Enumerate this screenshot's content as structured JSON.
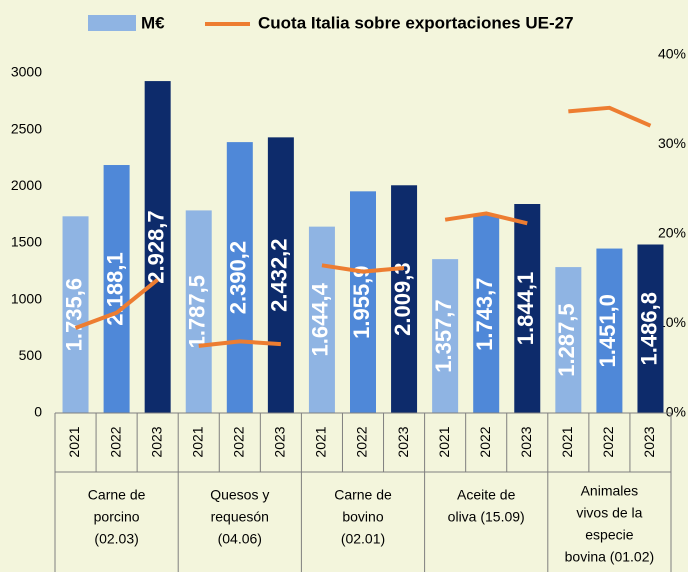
{
  "chart_data": {
    "type": "bar_line",
    "categories": [
      [
        "Carne de",
        "porcino",
        "(02.03)"
      ],
      [
        "Quesos y",
        "requesón",
        "(04.06)"
      ],
      [
        "Carne de",
        "bovino",
        "(02.01)"
      ],
      [
        "Aceite de",
        "oliva  (15.09)"
      ],
      [
        "Animales",
        "vivos de la",
        "especie",
        "bovina (01.02)"
      ]
    ],
    "years": [
      "2021",
      "2022",
      "2023"
    ],
    "series": [
      {
        "name": "M€",
        "color": "#8fb4e3",
        "colors": [
          "#8fb4e3",
          "#4f88d8",
          "#0d2b6b"
        ],
        "values": [
          [
            1735.6,
            2188.1,
            2928.7
          ],
          [
            1787.5,
            2390.2,
            2432.2
          ],
          [
            1644.4,
            1955.9,
            2009.3
          ],
          [
            1357.7,
            1743.7,
            1844.1
          ],
          [
            1287.5,
            1451.0,
            1486.8
          ]
        ],
        "value_labels": [
          [
            "1.735,6",
            "2.188,1",
            "2.928,7"
          ],
          [
            "1.787,5",
            "2.390,2",
            "2.432,2"
          ],
          [
            "1.644,4",
            "1.955,9",
            "2.009,3"
          ],
          [
            "1.357,7",
            "1.743,7",
            "1.844,1"
          ],
          [
            "1.287,5",
            "1.451,0",
            "1.486,8"
          ]
        ]
      },
      {
        "name": "Cuota Italia sobre exportaciones UE-27",
        "color": "#ed7d31",
        "axis": "y2",
        "values": [
          [
            9.5,
            11.2,
            14.9
          ],
          [
            7.5,
            8.0,
            7.7
          ],
          [
            16.5,
            15.8,
            16.2
          ],
          [
            21.6,
            22.3,
            21.2
          ],
          [
            33.7,
            34.1,
            32.1
          ]
        ]
      }
    ],
    "ylim": [
      0,
      3000
    ],
    "yticks": [
      0,
      500,
      1000,
      1500,
      2000,
      2500,
      3000
    ],
    "y2lim": [
      0,
      40
    ],
    "y2ticks": [
      {
        "value": 0,
        "label": "0%"
      },
      {
        "value": 10,
        "label": "10%"
      },
      {
        "value": 20,
        "label": "20%"
      },
      {
        "value": 30,
        "label": "30%"
      },
      {
        "value": 40,
        "label": "40%"
      }
    ]
  }
}
